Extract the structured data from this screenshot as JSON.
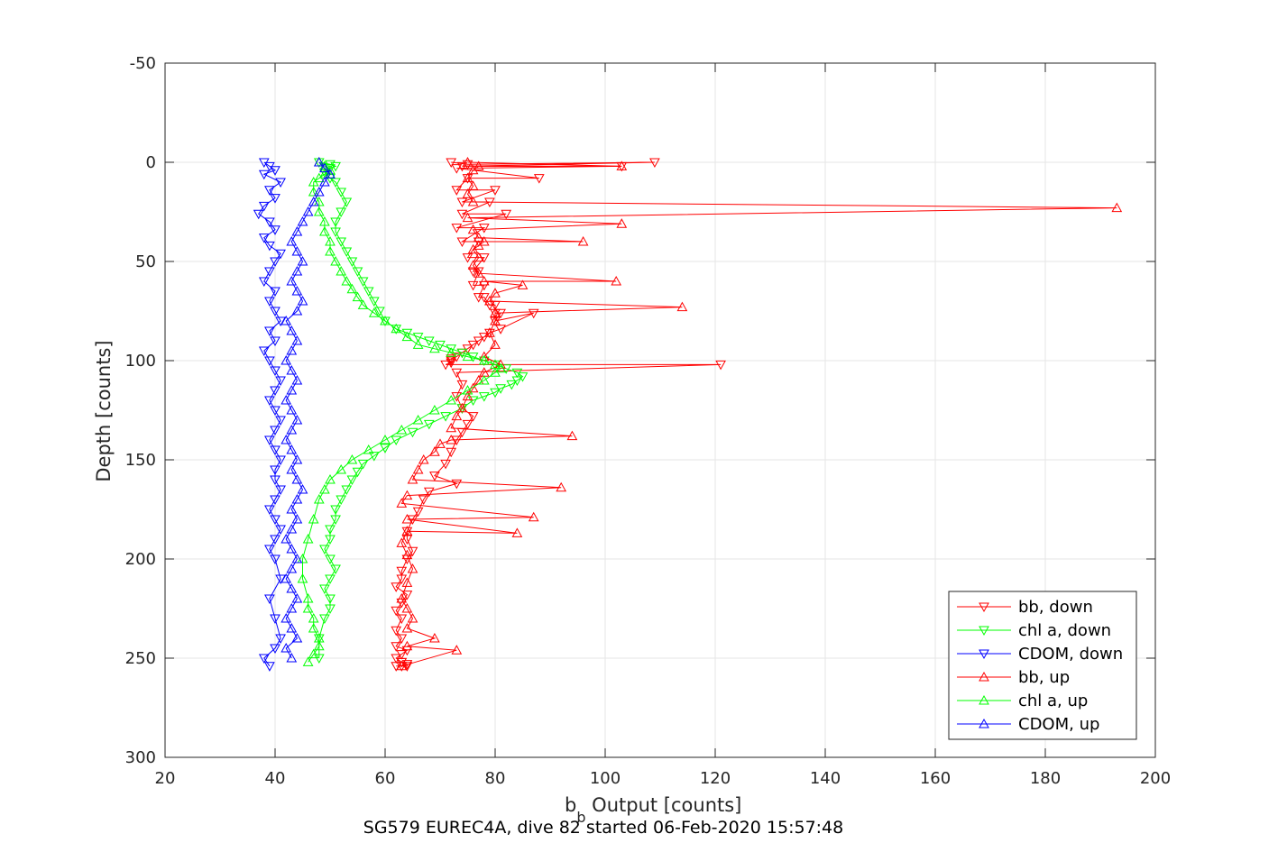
{
  "chart_data": {
    "type": "line",
    "caption": "SG579 EUREC4A, dive 82 started 06-Feb-2020 15:57:48",
    "xlabel_main": "b",
    "xlabel_sub": "b",
    "xlabel_rest": " Output [counts]",
    "ylabel": "Depth [counts]",
    "xlim": [
      20,
      200
    ],
    "ylim": [
      -50,
      300
    ],
    "y_reversed": true,
    "grid": true,
    "legend_position": "bottom-right",
    "x_ticks": [
      "20",
      "40",
      "60",
      "80",
      "100",
      "120",
      "140",
      "160",
      "180",
      "200"
    ],
    "y_ticks": [
      "-50",
      "0",
      "50",
      "100",
      "150",
      "200",
      "250",
      "300"
    ],
    "series": [
      {
        "name": "bb, down",
        "color": "#ff0000",
        "marker": "triangle-down",
        "x": [
          72,
          75,
          109,
          74,
          103,
          73,
          88,
          75,
          73,
          80,
          74,
          79,
          74,
          82,
          73,
          78,
          74,
          77,
          75,
          78,
          76,
          77,
          76,
          78,
          77,
          78,
          79,
          80,
          80,
          81,
          80,
          87,
          81,
          79,
          78,
          77,
          76,
          75,
          74,
          73,
          72,
          72,
          72,
          71,
          121,
          73,
          74,
          73,
          74,
          76,
          75,
          74,
          73,
          72,
          71,
          69,
          73,
          68,
          67,
          66,
          65,
          64,
          64,
          65,
          64,
          63,
          63,
          62,
          64,
          63,
          62,
          63,
          62,
          63,
          62,
          64,
          63,
          62,
          63,
          63,
          64,
          64,
          63,
          62
        ],
        "y": [
          0,
          1,
          0,
          2,
          2,
          3,
          8,
          8,
          14,
          14,
          20,
          20,
          26,
          26,
          33,
          33,
          40,
          40,
          48,
          48,
          55,
          55,
          62,
          62,
          68,
          68,
          72,
          72,
          76,
          76,
          80,
          76,
          84,
          86,
          88,
          90,
          92,
          94,
          96,
          98,
          99,
          100,
          101,
          102,
          102,
          106,
          112,
          118,
          124,
          128,
          132,
          136,
          140,
          146,
          152,
          158,
          162,
          166,
          170,
          176,
          180,
          186,
          190,
          196,
          200,
          206,
          210,
          214,
          218,
          222,
          226,
          230,
          236,
          240,
          244,
          246,
          248,
          250,
          252,
          252,
          253,
          254,
          254,
          254
        ]
      },
      {
        "name": "chl a, down",
        "color": "#00ff00",
        "marker": "triangle-down",
        "x": [
          48,
          50,
          51,
          50,
          49,
          50,
          51,
          52,
          53,
          52,
          51,
          51,
          52,
          53,
          54,
          55,
          56,
          57,
          58,
          59,
          60,
          62,
          64,
          66,
          68,
          70,
          72,
          74,
          76,
          78,
          80,
          82,
          84,
          85,
          84,
          83,
          81,
          80,
          78,
          76,
          74,
          71,
          68,
          65,
          62,
          60,
          58,
          56,
          55,
          54,
          53,
          52,
          51,
          51,
          50,
          50,
          49,
          50,
          51,
          50,
          49,
          50,
          50,
          49,
          48,
          48
        ],
        "y": [
          0,
          1,
          2,
          3,
          5,
          8,
          10,
          15,
          20,
          25,
          30,
          35,
          40,
          45,
          50,
          55,
          60,
          65,
          70,
          75,
          80,
          84,
          86,
          88,
          90,
          92,
          94,
          96,
          98,
          100,
          102,
          104,
          106,
          108,
          110,
          112,
          114,
          116,
          118,
          120,
          124,
          128,
          132,
          136,
          140,
          144,
          148,
          152,
          156,
          160,
          165,
          170,
          175,
          180,
          185,
          190,
          195,
          200,
          205,
          210,
          215,
          220,
          225,
          230,
          240,
          250
        ]
      },
      {
        "name": "CDOM, down",
        "color": "#0000ff",
        "marker": "triangle-down",
        "x": [
          38,
          39,
          40,
          38,
          41,
          39,
          40,
          38,
          37,
          39,
          40,
          38,
          39,
          41,
          40,
          39,
          38,
          40,
          39,
          40,
          41,
          39,
          40,
          38,
          39,
          40,
          41,
          40,
          39,
          40,
          41,
          40,
          39,
          40,
          41,
          40,
          40,
          41,
          40,
          39,
          40,
          41,
          40,
          39,
          40,
          41,
          39,
          40,
          41,
          40,
          38,
          39
        ],
        "y": [
          0,
          2,
          4,
          6,
          10,
          14,
          18,
          22,
          26,
          30,
          34,
          38,
          42,
          46,
          50,
          55,
          60,
          65,
          70,
          75,
          80,
          85,
          90,
          95,
          100,
          105,
          110,
          115,
          120,
          125,
          130,
          135,
          140,
          145,
          150,
          155,
          160,
          165,
          170,
          175,
          180,
          185,
          190,
          195,
          200,
          210,
          220,
          230,
          240,
          245,
          250,
          254
        ]
      },
      {
        "name": "bb, up",
        "color": "#ff0000",
        "marker": "triangle-up",
        "x": [
          63,
          73,
          64,
          69,
          64,
          65,
          64,
          63,
          64,
          65,
          64,
          63,
          64,
          84,
          64,
          87,
          63,
          64,
          92,
          65,
          66,
          67,
          69,
          70,
          72,
          94,
          72,
          73,
          74,
          75,
          76,
          77,
          78,
          81,
          78,
          80,
          79,
          80,
          80,
          114,
          79,
          80,
          85,
          78,
          102,
          77,
          76,
          77,
          76,
          77,
          78,
          96,
          77,
          76,
          103,
          75,
          193,
          76,
          75,
          76,
          75,
          76,
          77,
          103,
          75
        ],
        "y": [
          254,
          246,
          244,
          240,
          235,
          230,
          225,
          220,
          212,
          205,
          198,
          192,
          186,
          187,
          180,
          179,
          172,
          168,
          164,
          160,
          155,
          150,
          146,
          142,
          140,
          138,
          134,
          128,
          124,
          118,
          114,
          110,
          106,
          102,
          98,
          92,
          86,
          80,
          76,
          73,
          70,
          66,
          62,
          60,
          60,
          56,
          52,
          48,
          44,
          42,
          40,
          40,
          38,
          34,
          31,
          28,
          23,
          20,
          16,
          12,
          8,
          4,
          2,
          2,
          0
        ]
      },
      {
        "name": "chl a, up",
        "color": "#00ff00",
        "marker": "triangle-up",
        "x": [
          46,
          47,
          48,
          48,
          47,
          47,
          46,
          46,
          45,
          45,
          46,
          47,
          48,
          49,
          50,
          52,
          54,
          57,
          60,
          63,
          66,
          69,
          72,
          75,
          78,
          80,
          81,
          80,
          78,
          75,
          72,
          69,
          66,
          64,
          62,
          60,
          58,
          56,
          55,
          54,
          53,
          52,
          51,
          50,
          50,
          49,
          49,
          48,
          48,
          47,
          47,
          48,
          49,
          50,
          49,
          48
        ],
        "y": [
          252,
          248,
          244,
          240,
          235,
          230,
          225,
          220,
          210,
          200,
          190,
          180,
          170,
          165,
          160,
          155,
          150,
          145,
          140,
          135,
          130,
          125,
          120,
          115,
          110,
          106,
          104,
          102,
          100,
          98,
          96,
          94,
          92,
          88,
          84,
          80,
          76,
          72,
          68,
          64,
          60,
          55,
          50,
          45,
          40,
          35,
          30,
          25,
          20,
          15,
          10,
          8,
          6,
          4,
          2,
          0
        ]
      },
      {
        "name": "CDOM, up",
        "color": "#0000ff",
        "marker": "triangle-up",
        "x": [
          43,
          42,
          44,
          43,
          42,
          43,
          44,
          43,
          42,
          43,
          44,
          43,
          42,
          43,
          44,
          43,
          44,
          45,
          44,
          43,
          44,
          43,
          42,
          43,
          44,
          43,
          42,
          43,
          44,
          43,
          42,
          43,
          44,
          43,
          42,
          44,
          45,
          44,
          43,
          44,
          45,
          44,
          43,
          44,
          45,
          46,
          47,
          48,
          49,
          50,
          49,
          48
        ],
        "y": [
          250,
          245,
          240,
          235,
          230,
          225,
          220,
          215,
          210,
          205,
          200,
          195,
          190,
          185,
          180,
          175,
          170,
          165,
          160,
          155,
          150,
          145,
          140,
          135,
          130,
          125,
          120,
          115,
          110,
          105,
          100,
          95,
          90,
          85,
          80,
          75,
          70,
          65,
          60,
          55,
          50,
          45,
          40,
          35,
          30,
          25,
          20,
          15,
          10,
          6,
          3,
          0
        ]
      }
    ]
  }
}
